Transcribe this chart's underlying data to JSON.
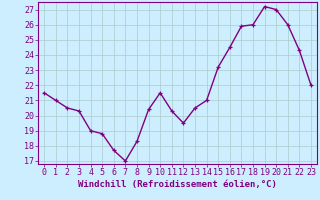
{
  "x": [
    0,
    1,
    2,
    3,
    4,
    5,
    6,
    7,
    8,
    9,
    10,
    11,
    12,
    13,
    14,
    15,
    16,
    17,
    18,
    19,
    20,
    21,
    22,
    23
  ],
  "y": [
    21.5,
    21.0,
    20.5,
    20.3,
    19.0,
    18.8,
    17.7,
    17.0,
    18.3,
    20.4,
    21.5,
    20.3,
    19.5,
    20.5,
    21.0,
    23.2,
    24.5,
    25.9,
    26.0,
    27.2,
    27.0,
    26.0,
    24.3,
    22.0
  ],
  "line_color": "#800080",
  "bg_color": "#cceeff",
  "grid_color": "#aacccc",
  "xlabel": "Windchill (Refroidissement éolien,°C)",
  "ylim_min": 17,
  "ylim_max": 27.5,
  "yticks": [
    17,
    18,
    19,
    20,
    21,
    22,
    23,
    24,
    25,
    26,
    27
  ],
  "xticks": [
    0,
    1,
    2,
    3,
    4,
    5,
    6,
    7,
    8,
    9,
    10,
    11,
    12,
    13,
    14,
    15,
    16,
    17,
    18,
    19,
    20,
    21,
    22,
    23
  ],
  "tick_color": "#800080",
  "label_color": "#800080",
  "xlabel_fontsize": 6.5,
  "tick_fontsize": 6.0,
  "linewidth": 1.0,
  "markersize": 3.5
}
